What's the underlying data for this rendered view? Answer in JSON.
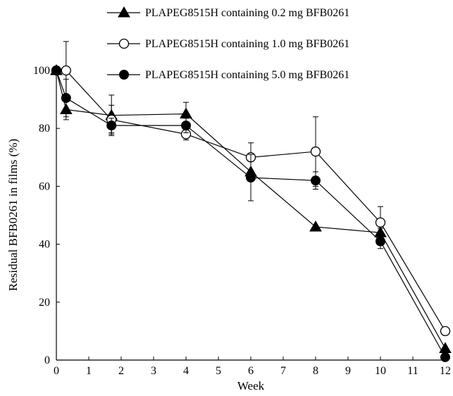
{
  "chart_data": {
    "type": "line",
    "title": "",
    "xlabel": "Week",
    "ylabel": "Residual BFB0261 in films (%)",
    "xlim": [
      0,
      12
    ],
    "ylim": [
      0,
      100
    ],
    "xticks": [
      0,
      1,
      2,
      3,
      4,
      5,
      6,
      7,
      8,
      9,
      10,
      11,
      12
    ],
    "yticks": [
      0,
      20,
      40,
      60,
      80,
      100
    ],
    "grid": false,
    "legend_position": "top",
    "series": [
      {
        "name": "PLAPEG8515H containing 0.2 mg BFB0261",
        "marker": "filled-triangle",
        "x": [
          0,
          0.3,
          1.7,
          4,
          6,
          8,
          10,
          12
        ],
        "y": [
          100,
          86.5,
          84.5,
          85,
          65,
          46,
          44,
          4
        ],
        "err": [
          0,
          3.5,
          7,
          4,
          0,
          0,
          1.5,
          0
        ]
      },
      {
        "name": "PLAPEG8515H containing 1.0 mg BFB0261",
        "marker": "open-circle",
        "x": [
          0,
          0.3,
          1.7,
          4,
          6,
          8,
          10,
          12
        ],
        "y": [
          100,
          100,
          83,
          78,
          70,
          72,
          47.5,
          10
        ],
        "err": [
          0,
          10,
          5,
          2,
          5,
          12,
          5.5,
          0
        ]
      },
      {
        "name": "PLAPEG8515H containing 5.0 mg BFB0261",
        "marker": "filled-circle",
        "x": [
          0,
          0.3,
          1.7,
          4,
          6,
          8,
          10,
          12
        ],
        "y": [
          100,
          90.5,
          81,
          81,
          63,
          62,
          41,
          1
        ],
        "err": [
          0,
          6.5,
          2.5,
          2.5,
          8,
          3,
          2.5,
          0
        ]
      }
    ]
  }
}
